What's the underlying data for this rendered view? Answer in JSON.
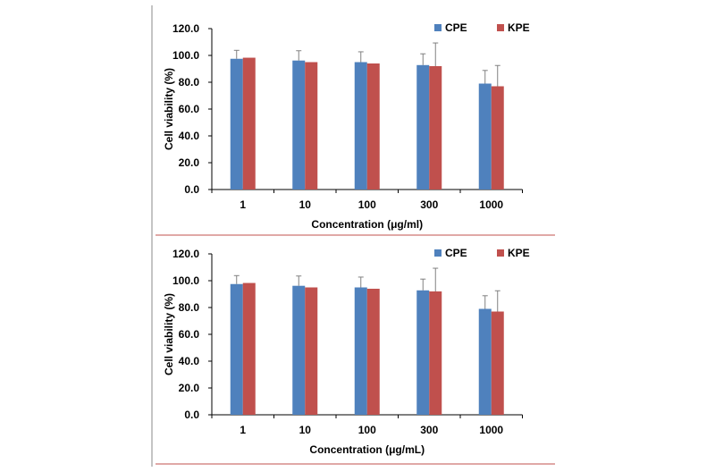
{
  "chart_data": [
    {
      "type": "bar",
      "categories": [
        "1",
        "10",
        "100",
        "300",
        "1000"
      ],
      "series": [
        {
          "name": "CPE",
          "values": [
            97.5,
            96.2,
            95.0,
            92.8,
            79.0
          ],
          "errors": [
            6.3,
            7.3,
            7.7,
            8.4,
            9.8
          ],
          "color": "#4F81BD"
        },
        {
          "name": "KPE",
          "values": [
            98.3,
            95.0,
            94.0,
            92.0,
            77.0
          ],
          "errors": [
            0,
            0,
            0,
            17.3,
            15.5
          ],
          "color": "#C0504D"
        }
      ],
      "xlabel": "Concentration (μg/ml)",
      "ylabel": "Cell viability (%)",
      "ylim": [
        0,
        120
      ],
      "yticks": [
        "0.0",
        "20.0",
        "40.0",
        "60.0",
        "80.0",
        "100.0",
        "120.0"
      ],
      "grid": false,
      "legend": "top-right"
    },
    {
      "type": "bar",
      "categories": [
        "1",
        "10",
        "100",
        "300",
        "1000"
      ],
      "series": [
        {
          "name": "CPE",
          "values": [
            97.5,
            96.2,
            95.0,
            92.8,
            79.0
          ],
          "errors": [
            6.3,
            7.3,
            7.7,
            8.4,
            9.8
          ],
          "color": "#4F81BD"
        },
        {
          "name": "KPE",
          "values": [
            98.3,
            95.0,
            94.0,
            92.0,
            77.0
          ],
          "errors": [
            0,
            0,
            0,
            17.3,
            15.5
          ],
          "color": "#C0504D"
        }
      ],
      "xlabel": "Concentration (μg/mL)",
      "ylabel": "Cell viability (%)",
      "ylim": [
        0,
        120
      ],
      "yticks": [
        "0.0",
        "20.0",
        "40.0",
        "60.0",
        "80.0",
        "100.0",
        "120.0"
      ],
      "grid": false,
      "legend": "top-right"
    }
  ]
}
